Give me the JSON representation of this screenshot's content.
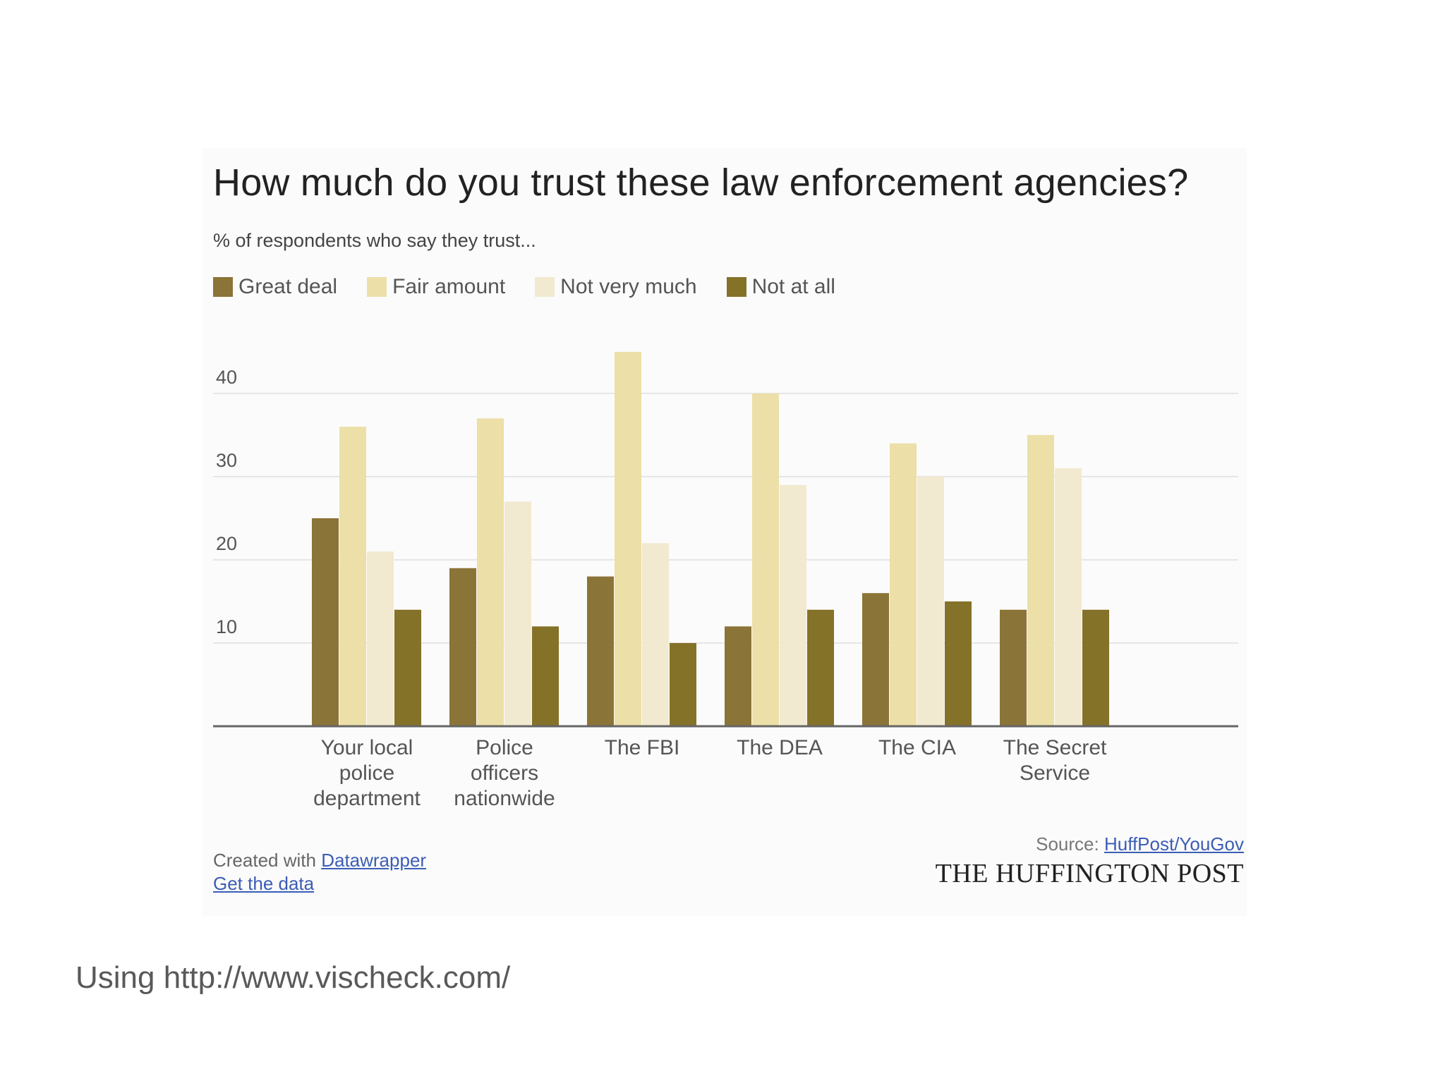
{
  "chart_data": {
    "type": "bar",
    "title": "How much do you trust these law enforcement agencies?",
    "subtitle": "% of respondents who say they trust...",
    "categories": [
      "Your local police department",
      "Police officers nationwide",
      "The FBI",
      "The DEA",
      "The CIA",
      "The Secret Service"
    ],
    "category_label_lines": [
      [
        "Your local",
        "police",
        "department"
      ],
      [
        "Police",
        "officers",
        "nationwide"
      ],
      [
        "The FBI"
      ],
      [
        "The DEA"
      ],
      [
        "The CIA"
      ],
      [
        "The Secret",
        "Service"
      ]
    ],
    "series": [
      {
        "name": "Great deal",
        "color": "#8b7437",
        "values": [
          25,
          19,
          18,
          12,
          16,
          14
        ]
      },
      {
        "name": "Fair amount",
        "color": "#ecdfa8",
        "values": [
          36,
          37,
          45,
          40,
          34,
          35
        ]
      },
      {
        "name": "Not very much",
        "color": "#f1ead0",
        "values": [
          21,
          27,
          22,
          29,
          30,
          31
        ]
      },
      {
        "name": "Not at all",
        "color": "#857229",
        "values": [
          14,
          12,
          10,
          14,
          15,
          14
        ]
      }
    ],
    "ylim": [
      0,
      46
    ],
    "yticks": [
      10,
      20,
      30,
      40
    ],
    "xlabel": "",
    "ylabel": "",
    "grid": true,
    "legend": "top-left"
  },
  "footer": {
    "created_prefix": "Created with",
    "created_link": "Datawrapper",
    "get_data": "Get the data",
    "source_prefix": "Source:",
    "source_link": "HuffPost/YouGov",
    "publisher": "THE HUFFINGTON POST"
  },
  "caption": "Using http://www.vischeck.com/"
}
